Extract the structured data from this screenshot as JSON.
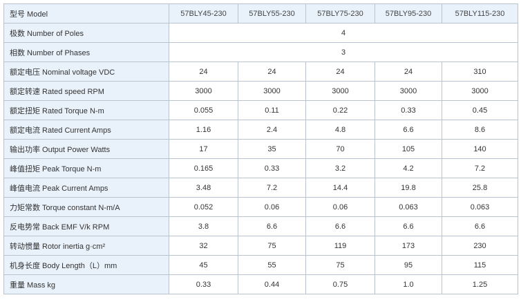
{
  "colors": {
    "border": "#b9c3cf",
    "label_background": "#e9f1fa",
    "text": "#333333"
  },
  "spec_table": {
    "header": {
      "label": "型号 Model",
      "models": [
        "57BLY45-230",
        "57BLY55-230",
        "57BLY75-230",
        "57BLY95-230",
        "57BLY115-230"
      ]
    },
    "shared_rows": [
      {
        "label": "极数 Number of Poles",
        "value": "4"
      },
      {
        "label": "相数 Number of Phases",
        "value": "3"
      }
    ],
    "rows": [
      {
        "label": "额定电压 Nominal voltage VDC",
        "values": [
          "24",
          "24",
          "24",
          "24",
          "310"
        ]
      },
      {
        "label": "额定转速 Rated speed RPM",
        "values": [
          "3000",
          "3000",
          "3000",
          "3000",
          "3000"
        ]
      },
      {
        "label": "额定扭矩 Rated Torque N-m",
        "values": [
          "0.055",
          "0.11",
          "0.22",
          "0.33",
          "0.45"
        ]
      },
      {
        "label": "额定电流 Rated Current Amps",
        "values": [
          "1.16",
          "2.4",
          "4.8",
          "6.6",
          "8.6"
        ]
      },
      {
        "label": "输出功率 Output Power Watts",
        "values": [
          "17",
          "35",
          "70",
          "105",
          "140"
        ]
      },
      {
        "label": "峰值扭矩 Peak Torque N-m",
        "values": [
          "0.165",
          "0.33",
          "3.2",
          "4.2",
          "7.2"
        ]
      },
      {
        "label": "峰值电流 Peak Current Amps",
        "values": [
          "3.48",
          "7.2",
          "14.4",
          "19.8",
          "25.8"
        ]
      },
      {
        "label": "力矩常数 Torque constant N-m/A",
        "values": [
          "0.052",
          "0.06",
          "0.06",
          "0.063",
          "0.063"
        ]
      },
      {
        "label": "反电势常 Back EMF V/k RPM",
        "values": [
          "3.8",
          "6.6",
          "6.6",
          "6.6",
          "6.6"
        ]
      },
      {
        "label": "转动惯量 Rotor inertia g·cm²",
        "values": [
          "32",
          "75",
          "119",
          "173",
          "230"
        ]
      },
      {
        "label": "机身长度 Body Length（L）mm",
        "values": [
          "45",
          "55",
          "75",
          "95",
          "115"
        ]
      },
      {
        "label": "重量 Mass kg",
        "values": [
          "0.33",
          "0.44",
          "0.75",
          "1.0",
          "1.25"
        ]
      }
    ]
  }
}
